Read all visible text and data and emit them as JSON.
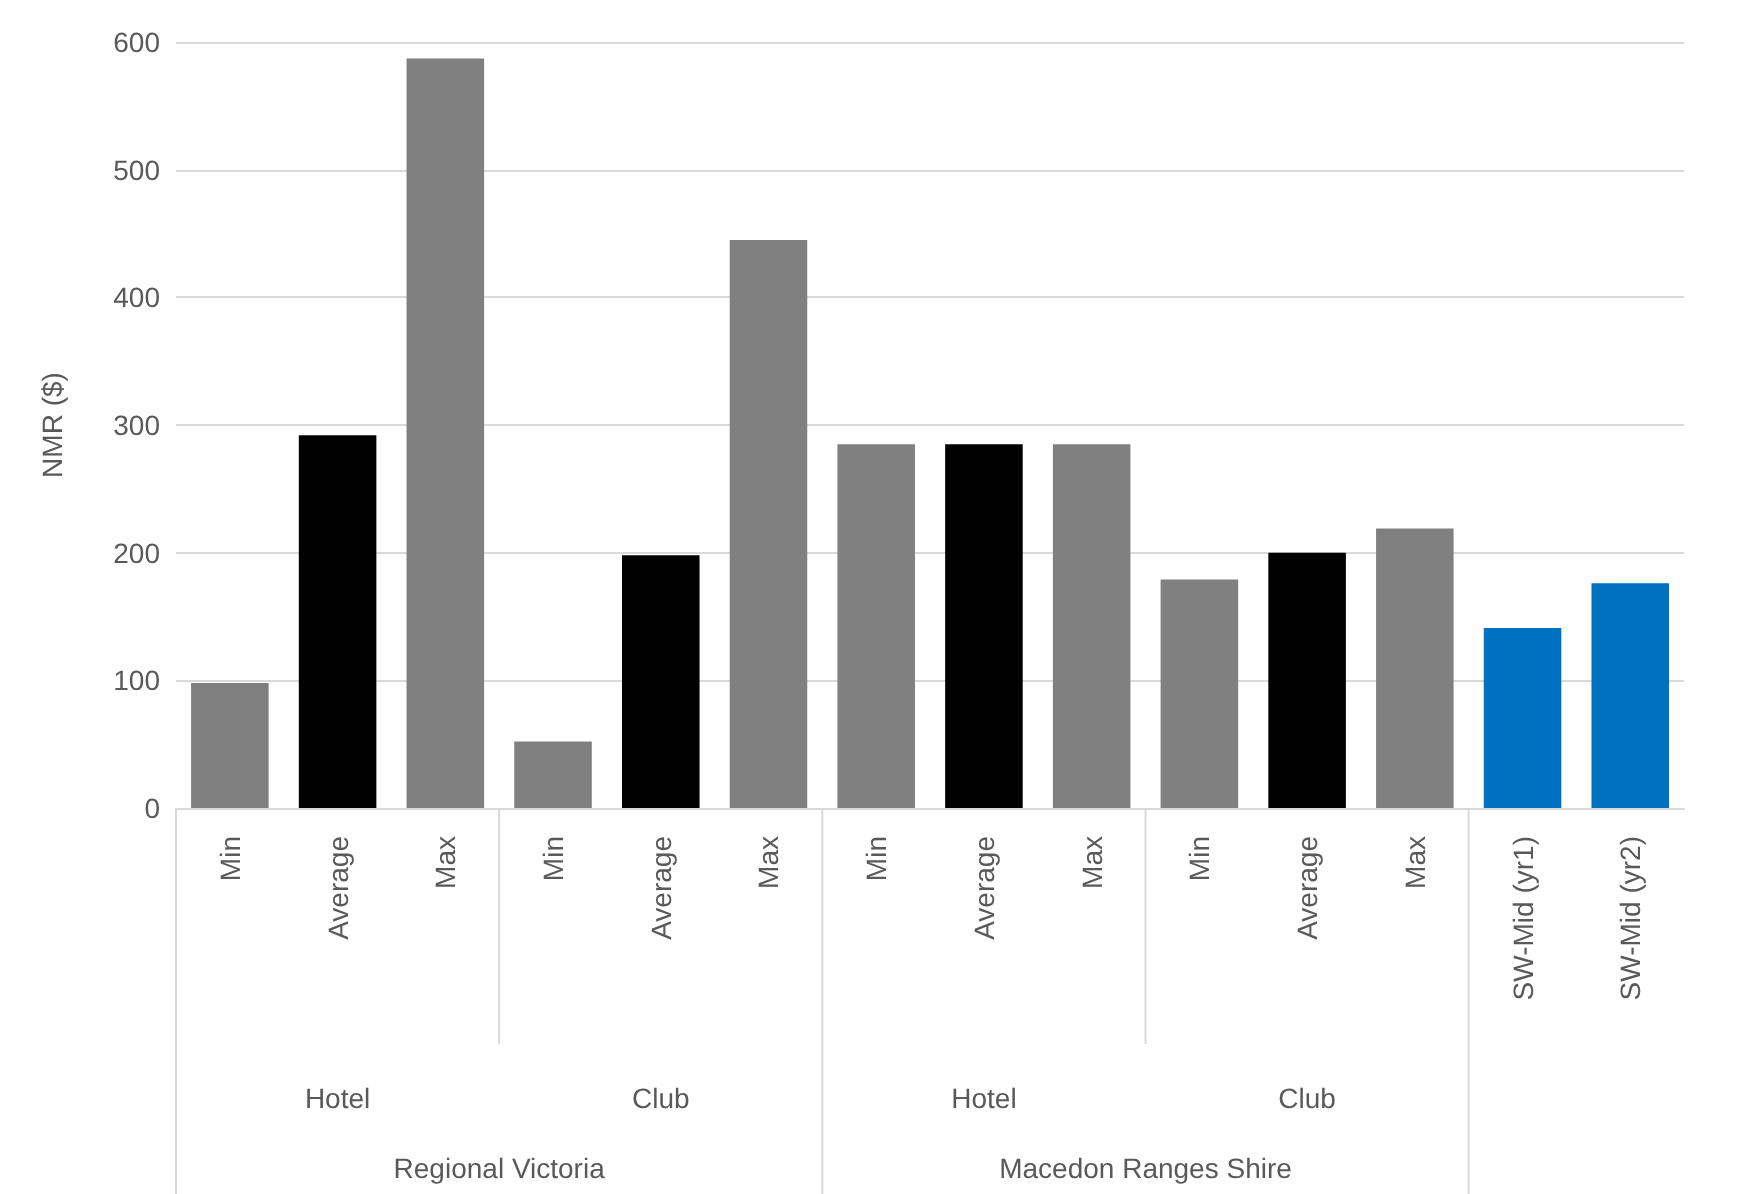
{
  "chart_data": {
    "type": "bar",
    "ylabel": "NMR ($)",
    "categories": [
      "Min",
      "Average",
      "Max",
      "Min",
      "Average",
      "Max",
      "Min",
      "Average",
      "Max",
      "Min",
      "Average",
      "Max",
      "SW-Mid (yr1)",
      "SW-Mid (yr2)"
    ],
    "values": [
      98,
      292,
      587,
      52,
      198,
      445,
      285,
      285,
      285,
      179,
      200,
      219,
      141,
      176
    ],
    "colors": [
      "#808080",
      "#000000",
      "#808080",
      "#808080",
      "#000000",
      "#808080",
      "#808080",
      "#000000",
      "#808080",
      "#808080",
      "#000000",
      "#808080",
      "#0070c0",
      "#0070c0"
    ],
    "annotations": [
      "Hotel",
      "Club",
      "Hotel",
      "Club",
      "Regional Victoria",
      "Macedon Ranges Shire"
    ],
    "ylim": [
      0,
      600
    ],
    "yticks": [
      0,
      100,
      200,
      300,
      400,
      500,
      600
    ],
    "grid": "y"
  }
}
